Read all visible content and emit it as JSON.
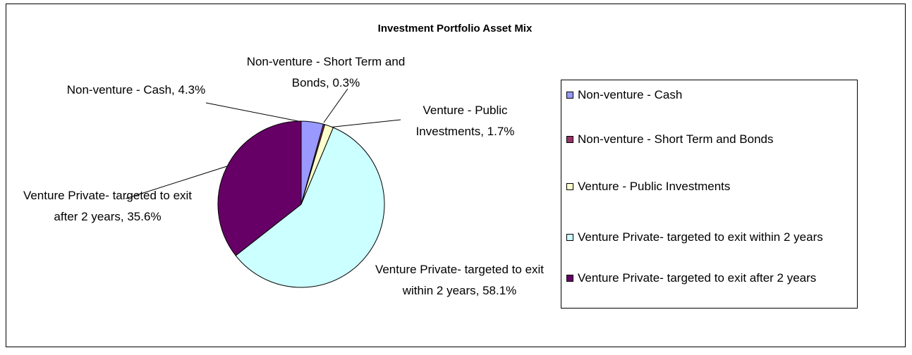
{
  "chart_data": {
    "type": "pie",
    "title": "Investment Portfolio Asset Mix",
    "categories": [
      "Non-venture - Cash",
      "Non-venture - Short Term and Bonds",
      "Venture - Public Investments",
      "Venture Private- targeted to exit within 2 years",
      "Venture Private- targeted to exit after 2 years"
    ],
    "values": [
      4.3,
      0.3,
      1.7,
      58.1,
      35.6
    ],
    "value_labels": [
      "Non-venture - Cash, 4.3%",
      "Non-venture - Short Term and Bonds, 0.3%",
      "Venture - Public Investments, 1.7%",
      "Venture Private- targeted to exit within 2 years, 58.1%",
      "Venture Private- targeted to exit after 2 years, 35.6%"
    ],
    "colors": [
      "#9999ff",
      "#993366",
      "#ffffcc",
      "#ccffff",
      "#660066"
    ],
    "legend": "right"
  }
}
